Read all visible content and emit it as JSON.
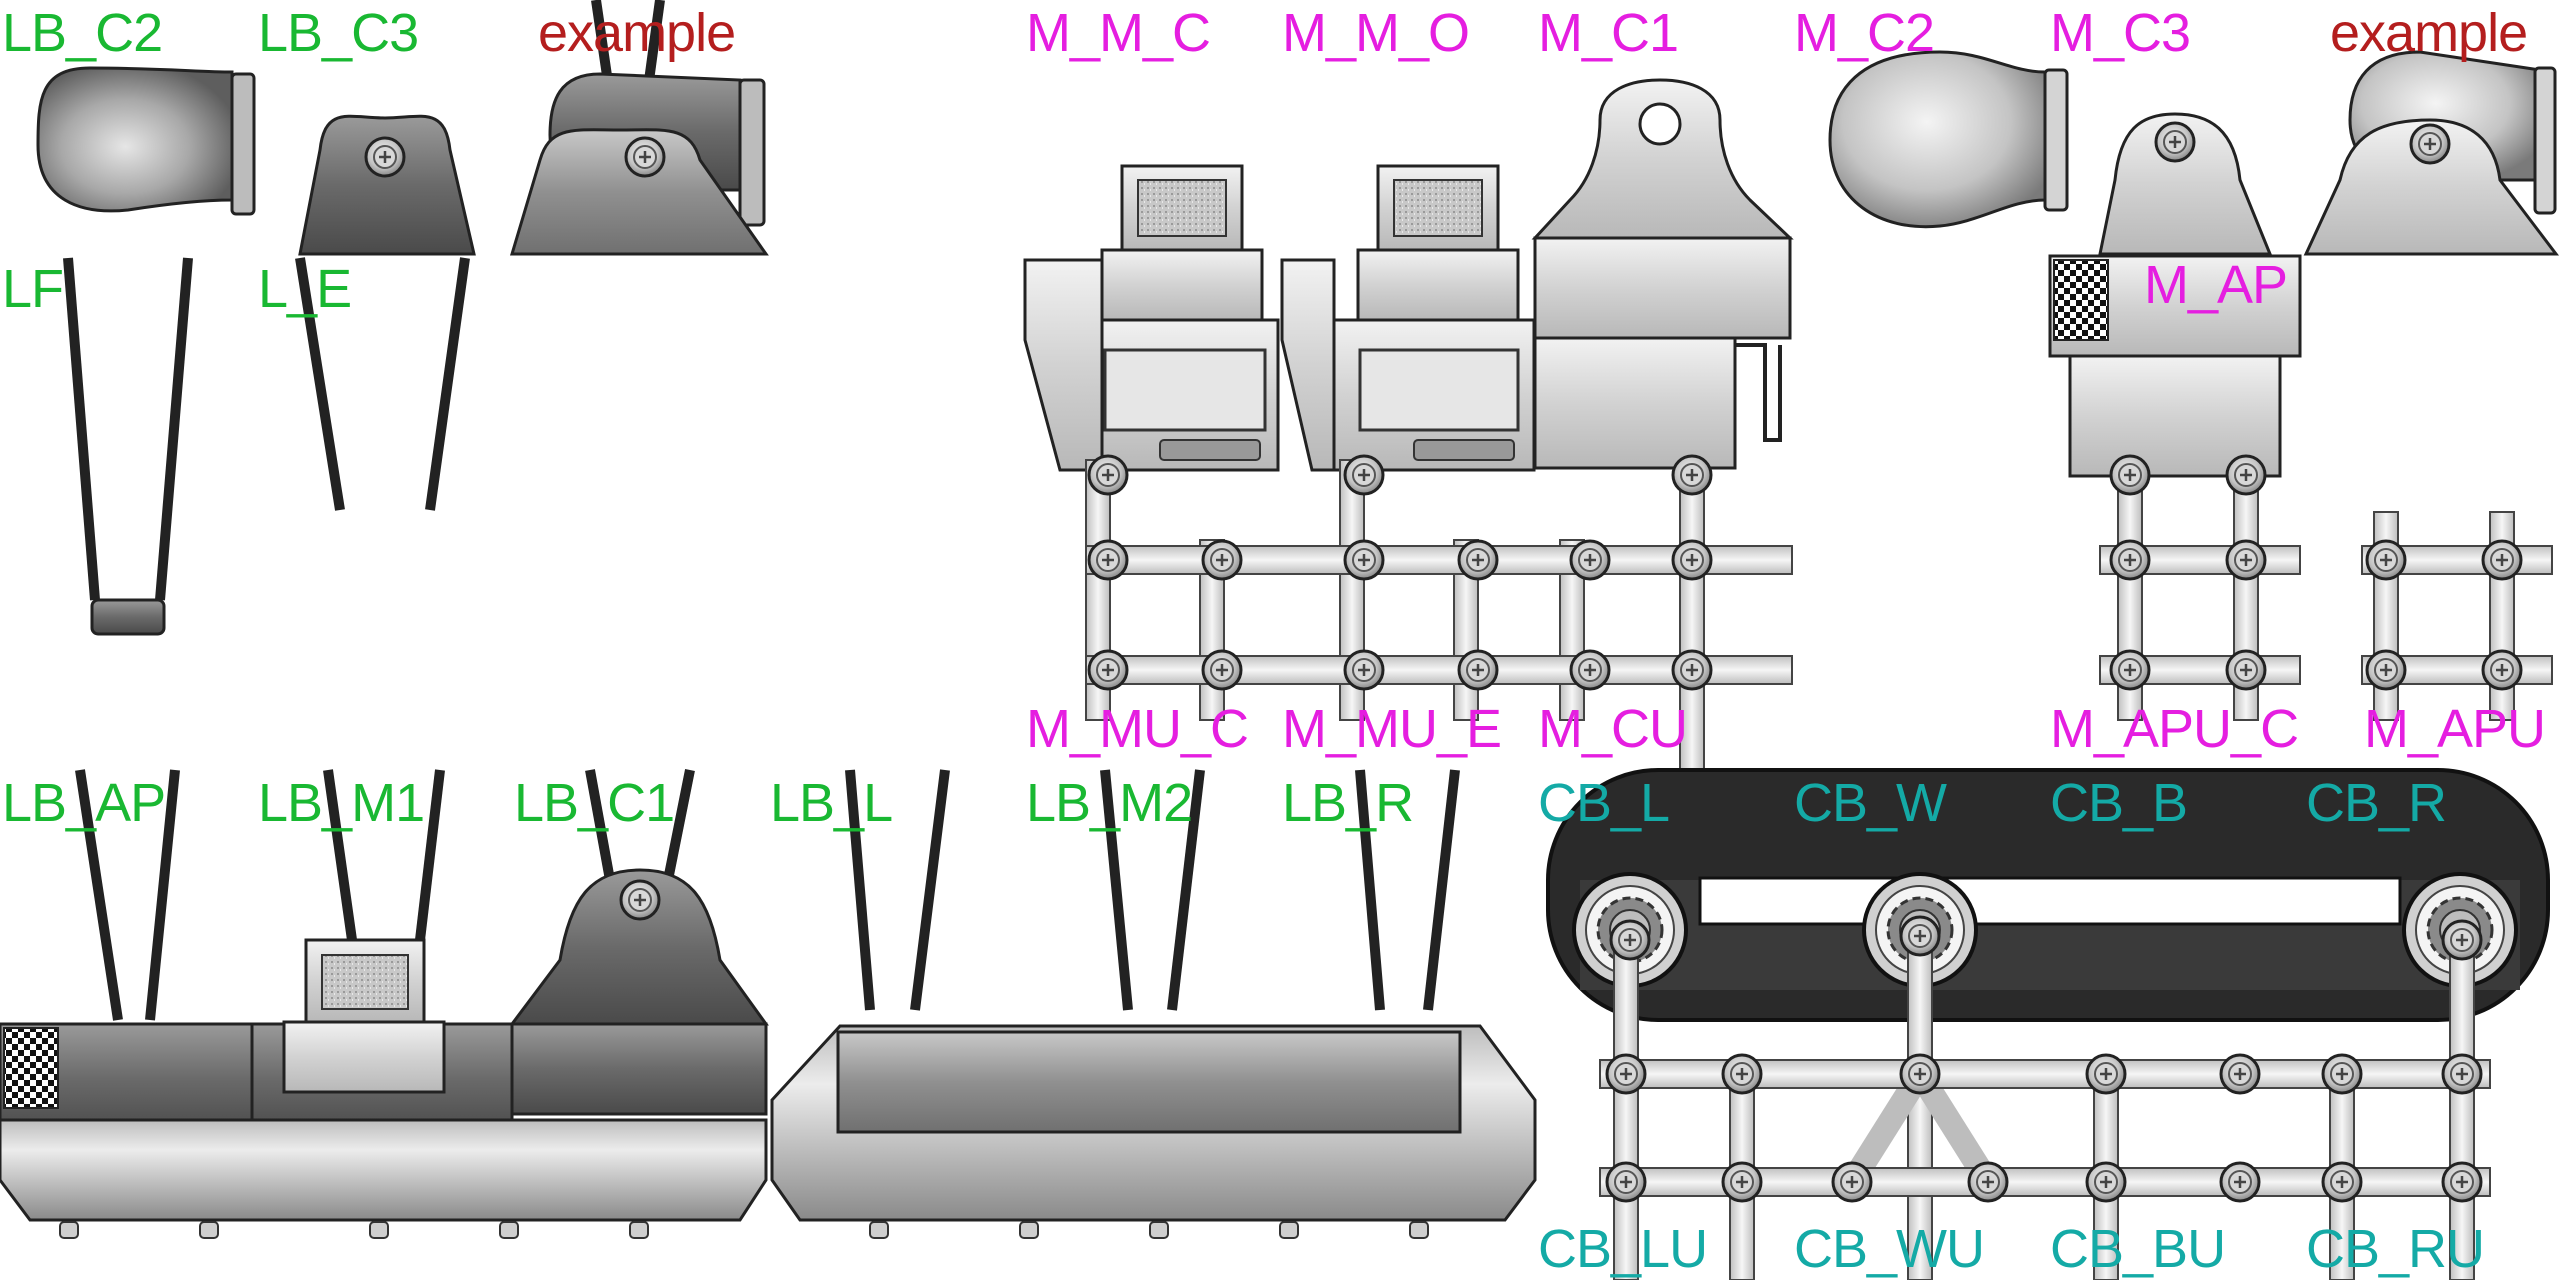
{
  "colors": {
    "green": "#19b832",
    "magenta": "#e51ee0",
    "teal": "#14aaa6",
    "red": "#b41e1e"
  },
  "labels": [
    {
      "id": "lb_c2",
      "text": "LB_C2",
      "color": "green"
    },
    {
      "id": "lb_c3",
      "text": "LB_C3",
      "color": "green"
    },
    {
      "id": "example_left",
      "text": "example",
      "color": "red"
    },
    {
      "id": "m_m_c",
      "text": "M_M_C",
      "color": "magenta"
    },
    {
      "id": "m_m_o",
      "text": "M_M_O",
      "color": "magenta"
    },
    {
      "id": "m_c1",
      "text": "M_C1",
      "color": "magenta"
    },
    {
      "id": "m_c2",
      "text": "M_C2",
      "color": "magenta"
    },
    {
      "id": "m_c3",
      "text": "M_C3",
      "color": "magenta"
    },
    {
      "id": "example_right",
      "text": "example",
      "color": "red"
    },
    {
      "id": "lf",
      "text": "LF",
      "color": "green"
    },
    {
      "id": "l_e",
      "text": "L_E",
      "color": "green"
    },
    {
      "id": "m_ap",
      "text": "M_AP",
      "color": "magenta"
    },
    {
      "id": "m_mu_c",
      "text": "M_MU_C",
      "color": "magenta"
    },
    {
      "id": "m_mu_e",
      "text": "M_MU_E",
      "color": "magenta"
    },
    {
      "id": "m_cu",
      "text": "M_CU",
      "color": "magenta"
    },
    {
      "id": "m_apu_c",
      "text": "M_APU_C",
      "color": "magenta"
    },
    {
      "id": "m_apu",
      "text": "M_APU",
      "color": "magenta"
    },
    {
      "id": "lb_ap",
      "text": "LB_AP",
      "color": "green"
    },
    {
      "id": "lb_m1",
      "text": "LB_M1",
      "color": "green"
    },
    {
      "id": "lb_c1",
      "text": "LB_C1",
      "color": "green"
    },
    {
      "id": "lb_l",
      "text": "LB_L",
      "color": "green"
    },
    {
      "id": "lb_m2",
      "text": "LB_M2",
      "color": "green"
    },
    {
      "id": "lb_r",
      "text": "LB_R",
      "color": "green"
    },
    {
      "id": "cb_l",
      "text": "CB_L",
      "color": "teal"
    },
    {
      "id": "cb_w",
      "text": "CB_W",
      "color": "teal"
    },
    {
      "id": "cb_b",
      "text": "CB_B",
      "color": "teal"
    },
    {
      "id": "cb_r",
      "text": "CB_R",
      "color": "teal"
    },
    {
      "id": "cb_lu",
      "text": "CB_LU",
      "color": "teal"
    },
    {
      "id": "cb_wu",
      "text": "CB_WU",
      "color": "teal"
    },
    {
      "id": "cb_bu",
      "text": "CB_BU",
      "color": "teal"
    },
    {
      "id": "cb_ru",
      "text": "CB_RU",
      "color": "teal"
    }
  ]
}
